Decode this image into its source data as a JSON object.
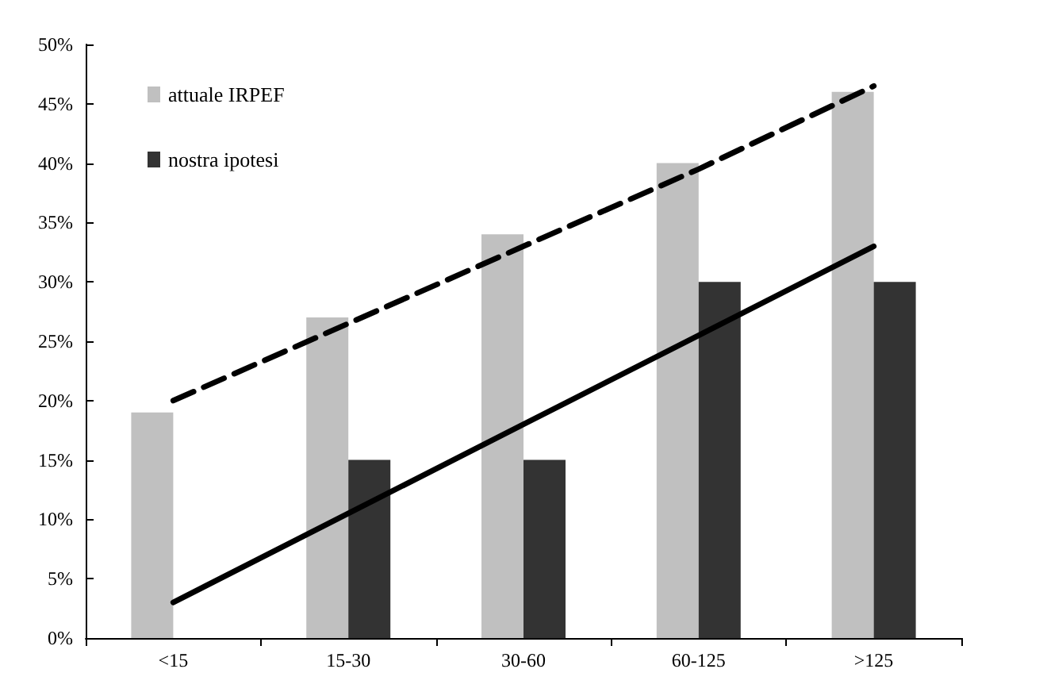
{
  "chart_data": {
    "type": "bar",
    "categories": [
      "<15",
      "15-30",
      "30-60",
      "60-125",
      ">125"
    ],
    "series": [
      {
        "name": "attuale IRPEF",
        "color": "#c0c0c0",
        "values": [
          19,
          27,
          34,
          40,
          46
        ]
      },
      {
        "name": "nostra ipotesi",
        "color": "#333333",
        "values": [
          null,
          15,
          15,
          30,
          30
        ]
      },
      {
        "type": "line",
        "color": "#000000",
        "line_style": "dashed",
        "marker": "none",
        "values": [
          20,
          26.5,
          33,
          39.5,
          46.5
        ]
      },
      {
        "type": "line",
        "color": "#000000",
        "line_style": "solid",
        "marker": "none",
        "values": [
          3,
          10.5,
          18,
          25.5,
          33
        ]
      }
    ],
    "ylim": [
      0,
      50
    ],
    "yticks": [
      {
        "value": 0,
        "label": "0%"
      },
      {
        "value": 5,
        "label": "5%"
      },
      {
        "value": 10,
        "label": "10%"
      },
      {
        "value": 15,
        "label": "15%"
      },
      {
        "value": 20,
        "label": "20%"
      },
      {
        "value": 25,
        "label": "25%"
      },
      {
        "value": 30,
        "label": "30%"
      },
      {
        "value": 35,
        "label": "35%"
      },
      {
        "value": 40,
        "label": "40%"
      },
      {
        "value": 45,
        "label": "45%"
      },
      {
        "value": 50,
        "label": "50%"
      }
    ],
    "grid": false,
    "legend": "top left"
  }
}
